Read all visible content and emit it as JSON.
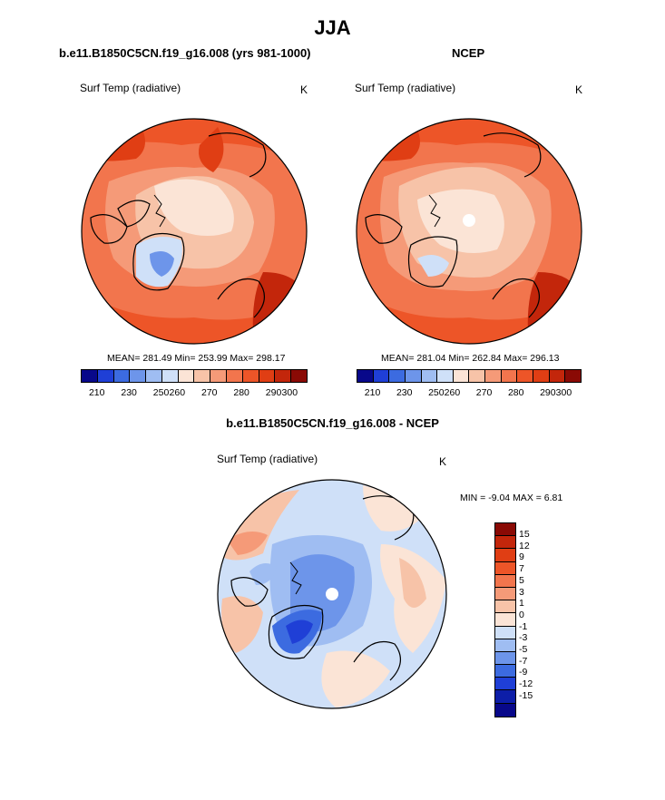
{
  "page": {
    "title": "JJA"
  },
  "left_panel": {
    "title": "b.e11.B1850C5CN.f19_g16.008 (yrs 981-1000)",
    "variable": "Surf Temp (radiative)",
    "units": "K",
    "stats": "MEAN= 281.49  Min= 253.99  Max= 298.17",
    "colorbar_labels": [
      "210",
      "230",
      "250",
      "260",
      "270",
      "280",
      "290",
      "300"
    ]
  },
  "right_panel": {
    "title": "NCEP",
    "variable": "Surf Temp (radiative)",
    "units": "K",
    "stats": "MEAN= 281.04  Min= 262.84  Max= 296.13",
    "colorbar_labels": [
      "210",
      "230",
      "250",
      "260",
      "270",
      "280",
      "290",
      "300"
    ]
  },
  "diff_panel": {
    "title": "b.e11.B1850C5CN.f19_g16.008 - NCEP",
    "variable": "Surf Temp (radiative)",
    "units": "K",
    "stats": "MIN =  -9.04 MAX =   6.81",
    "colorbar_labels": [
      "15",
      "12",
      "9",
      "7",
      "5",
      "3",
      "1",
      "0",
      "-1",
      "-3",
      "-5",
      "-7",
      "-9",
      "-12",
      "-15"
    ]
  },
  "colors": {
    "abs_scale": [
      "#08088a",
      "#1f3fd6",
      "#3c6be0",
      "#6d95ea",
      "#9fbdf2",
      "#cfe0f8",
      "#fbe4d6",
      "#f7c3a8",
      "#f59a78",
      "#f2754d",
      "#ed5528",
      "#e03e14",
      "#c3260b",
      "#8a0a05"
    ],
    "diff_scale": [
      "#8a0a05",
      "#c3260b",
      "#e03e14",
      "#ed5528",
      "#f2754d",
      "#f59a78",
      "#f7c3a8",
      "#fbe4d6",
      "#cfe0f8",
      "#9fbdf2",
      "#6d95ea",
      "#3c6be0",
      "#1f3fd6",
      "#0d1ea8",
      "#08088a"
    ]
  }
}
